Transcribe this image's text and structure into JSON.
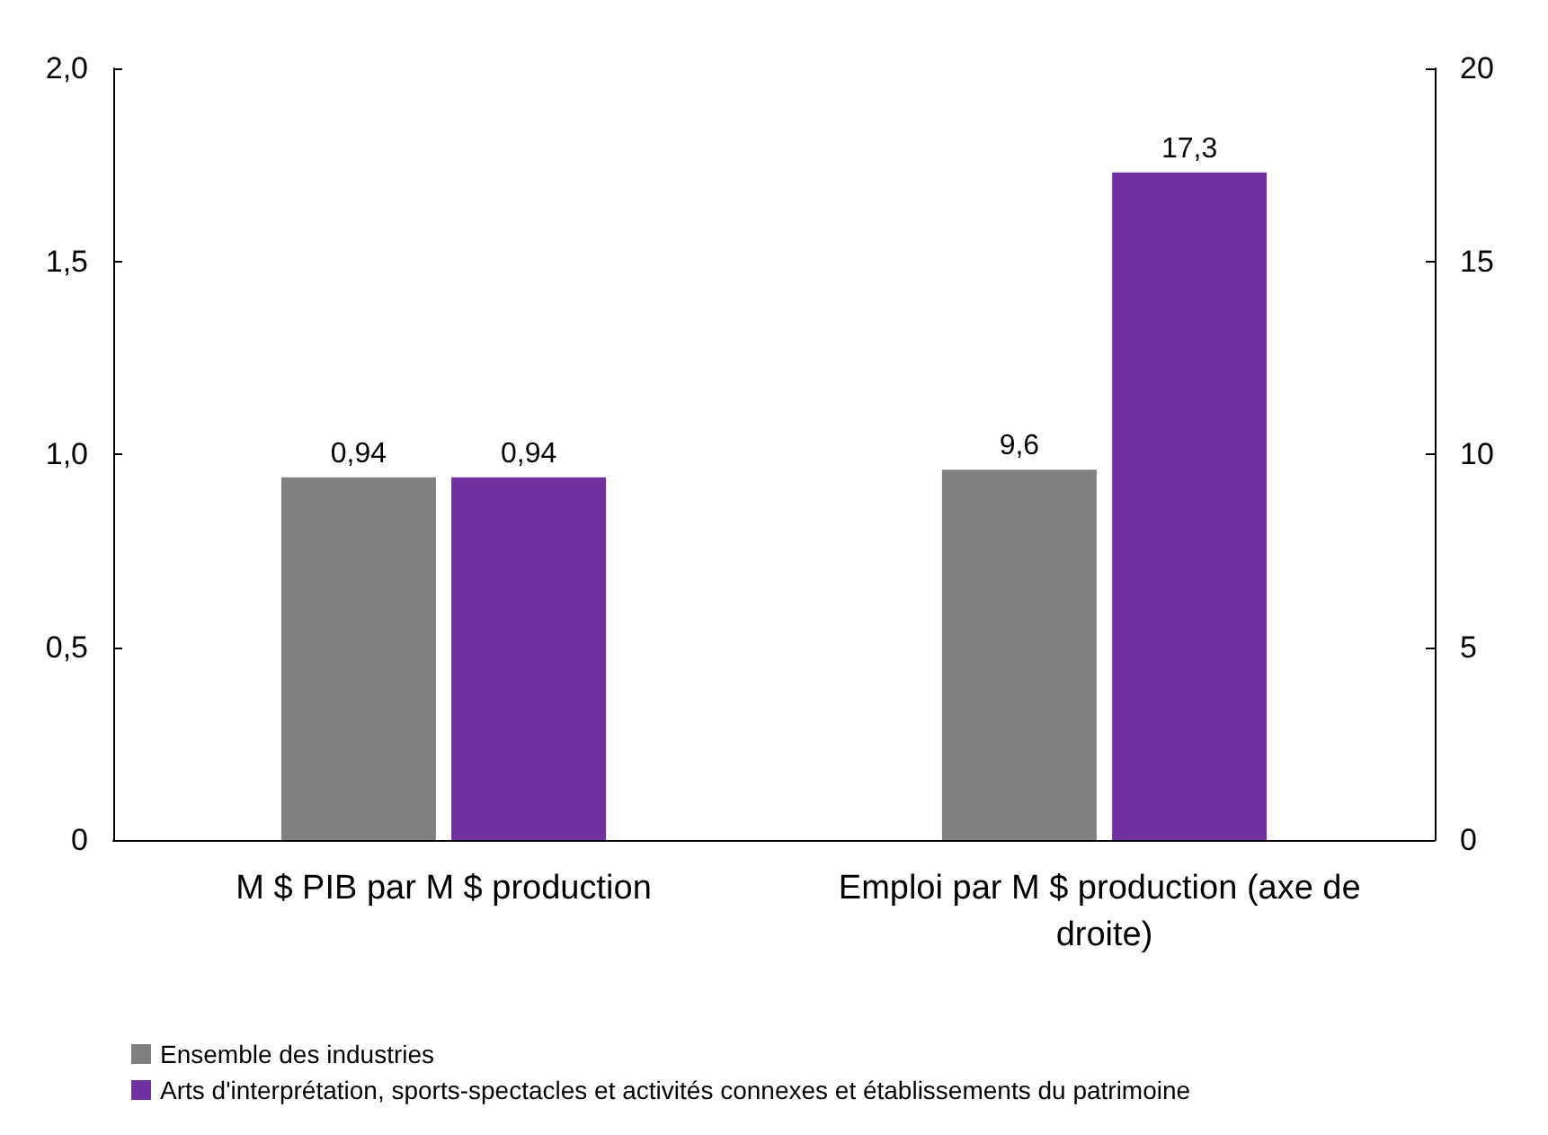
{
  "chart_data": {
    "type": "bar",
    "categories": [
      "M $ PIB par M $ production",
      "Emploi par M $ production (axe de droite)"
    ],
    "series": [
      {
        "name": "Ensemble des industries",
        "color": "#808080",
        "values": [
          0.94,
          null
        ],
        "value_labels": [
          "0,94",
          null
        ]
      },
      {
        "name": "Arts d'interprétation, sports-spectacles et activités connexes et établissements du patrimoine",
        "color": "#7030a0",
        "values": [
          0.94,
          null
        ],
        "value_labels": [
          "0,94",
          null
        ]
      },
      {
        "color": "#808080",
        "values": [
          null,
          9.6
        ],
        "axis": "y2",
        "value_labels": [
          null,
          "9,6"
        ]
      },
      {
        "color": "#7030a0",
        "values": [
          null,
          17.3
        ],
        "axis": "y2",
        "value_labels": [
          null,
          "17,3"
        ]
      }
    ],
    "ylim": [
      0,
      2
    ],
    "yticks": [
      0,
      {
        "value": 0.5,
        "label": "0,5"
      },
      {
        "value": 1,
        "label": "1,0"
      },
      {
        "value": 1.5,
        "label": "1,5"
      },
      {
        "value": 2,
        "label": "2,0"
      }
    ],
    "y2lim": [
      0,
      20
    ],
    "y2ticks": [
      0,
      5,
      10,
      15,
      20
    ],
    "grid": false,
    "legend": "bottom left"
  }
}
